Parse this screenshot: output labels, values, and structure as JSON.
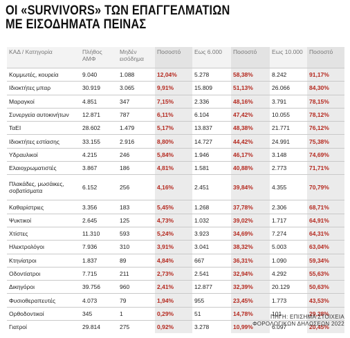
{
  "title": {
    "line1": "ΟΙ «SURVIVORS» ΤΩΝ ΕΠΑΓΓΕΛΜΑΤΙΩΝ",
    "line2": "ΜΕ ΕΙΣΟΔΗΜΑΤΑ ΠΕΙΝΑΣ"
  },
  "headers": [
    "ΚΑΔ / Κατηγορία",
    "Πλήθος ΑΜΦ",
    "Μηδέν εισόδημα",
    "Ποσοστό",
    "Εως 6.000",
    "Ποσοστό",
    "Εως 10.000",
    "Ποσοστό"
  ],
  "rows": [
    [
      "Κομμωτές, κουρεία",
      "9.040",
      "1.088",
      "12,04%",
      "5.278",
      "58,38%",
      "8.242",
      "91,17%"
    ],
    [
      "Ιδιοκτήτες μπαρ",
      "30.919",
      "3.065",
      "9,91%",
      "15.809",
      "51,13%",
      "26.066",
      "84,30%"
    ],
    [
      "Μαραγκοί",
      "4.851",
      "347",
      "7,15%",
      "2.336",
      "48,16%",
      "3.791",
      "78,15%"
    ],
    [
      "Συνεργεία αυτοκινήτων",
      "12.871",
      "787",
      "6,11%",
      "6.104",
      "47,42%",
      "10.055",
      "78,12%"
    ],
    [
      "ΤαΕΙ",
      "28.602",
      "1.479",
      "5,17%",
      "13.837",
      "48,38%",
      "21.771",
      "76,12%"
    ],
    [
      "Ιδιοκτήτες εστίασης",
      "33.155",
      "2.916",
      "8,80%",
      "14.727",
      "44,42%",
      "24.991",
      "75,38%"
    ],
    [
      "Υδραυλικοί",
      "4.215",
      "246",
      "5,84%",
      "1.946",
      "46,17%",
      "3.148",
      "74,69%"
    ],
    [
      "Ελαιοχρωματιστές",
      "3.867",
      "186",
      "4,81%",
      "1.581",
      "40,88%",
      "2.773",
      "71,71%"
    ],
    [
      "Πλακάδες, μωσάικες, σοβατίσματα",
      "6.152",
      "256",
      "4,16%",
      "2.451",
      "39,84%",
      "4.355",
      "70,79%"
    ],
    [
      "Καθαρίστριες",
      "3.356",
      "183",
      "5,45%",
      "1.268",
      "37,78%",
      "2.306",
      "68,71%"
    ],
    [
      "Ψυκτικοί",
      "2.645",
      "125",
      "4,73%",
      "1.032",
      "39,02%",
      "1.717",
      "64,91%"
    ],
    [
      "Χτίστες",
      "11.310",
      "593",
      "5,24%",
      "3.923",
      "34,69%",
      "7.274",
      "64,31%"
    ],
    [
      "Ηλεκτρολόγοι",
      "7.936",
      "310",
      "3,91%",
      "3.041",
      "38,32%",
      "5.003",
      "63,04%"
    ],
    [
      "Κτηνίατροι",
      "1.837",
      "89",
      "4,84%",
      "667",
      "36,31%",
      "1.090",
      "59,34%"
    ],
    [
      "Οδοντίατροι",
      "7.715",
      "211",
      "2,73%",
      "2.541",
      "32,94%",
      "4.292",
      "55,63%"
    ],
    [
      "Δικηγόροι",
      "39.756",
      "960",
      "2,41%",
      "12.877",
      "32,39%",
      "20.129",
      "50,63%"
    ],
    [
      "Φυσιοθεραπευτές",
      "4.073",
      "79",
      "1,94%",
      "955",
      "23,45%",
      "1.773",
      "43,53%"
    ],
    [
      "Ορθοδοντικοί",
      "345",
      "1",
      "0,29%",
      "51",
      "14,78%",
      "101",
      "29,28%"
    ],
    [
      "Γιατροί",
      "29.814",
      "275",
      "0,92%",
      "3.278",
      "10,99%",
      "6.097",
      "20,45%"
    ]
  ],
  "source": {
    "line1": "ΠΗΓΗ: ΕΠΙΣΗΜΑ ΣΤΟΙΧΕΙΑ",
    "line2": "ΦΟΡΟΛΟΓΙΚΩΝ ΔΗΛΩΣΕΩΝ 2022"
  },
  "colors": {
    "percent_text": "#b5281e",
    "percent_bg": "#ebebeb"
  }
}
